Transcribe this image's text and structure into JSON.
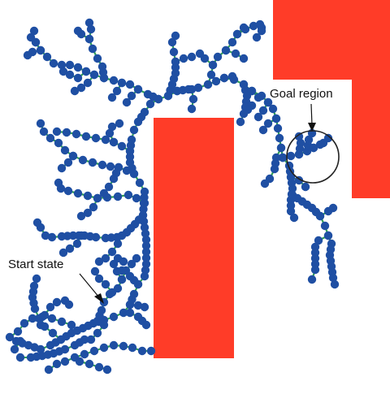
{
  "labels": {
    "goal": "Goal region",
    "start": "Start state"
  },
  "colors": {
    "obstacle": "#ff3c28",
    "node_fill": "#1f4fa3",
    "edge": "#2e9e57",
    "text": "#111111"
  }
}
